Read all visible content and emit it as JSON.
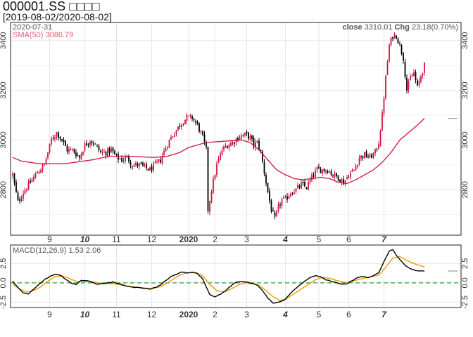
{
  "header": {
    "title": "000001.SS □□□□",
    "date_range": "[2019-08-02/2020-08-02]"
  },
  "colors": {
    "up": "#d1133f",
    "down": "#000000",
    "sma": "#d1133f",
    "macd_line": "#000000",
    "signal_line": "#e69f00",
    "zero_line": "#2ca02c",
    "grid": "#e6e6e6",
    "sma_legend": "#e0607a"
  },
  "chart_data": [
    {
      "type": "candlestick",
      "title": "",
      "info_date": "2020-07-31",
      "info_close_label": "close",
      "info_close_value": "3310.01",
      "info_chg_label": "Chg",
      "info_chg_value": "23.18(0.70%)",
      "sma_legend": "SMA(50) 3086.79",
      "ylim": [
        2620,
        3470
      ],
      "y_ticks": [
        2800,
        3000,
        3200,
        3400
      ],
      "grid": true,
      "x_range": [
        0,
        252
      ],
      "x_ticks": [
        {
          "label": "9",
          "x": 21,
          "bold": false
        },
        {
          "label": "10",
          "x": 41,
          "bold": true
        },
        {
          "label": "11",
          "x": 59,
          "bold": false
        },
        {
          "label": "12",
          "x": 79,
          "bold": false
        },
        {
          "label": "2020",
          "x": 100,
          "bold": true
        },
        {
          "label": "2",
          "x": 115,
          "bold": false
        },
        {
          "label": "3",
          "x": 133,
          "bold": false
        },
        {
          "label": "4",
          "x": 155,
          "bold": true
        },
        {
          "label": "5",
          "x": 174,
          "bold": false
        },
        {
          "label": "6",
          "x": 191,
          "bold": false
        },
        {
          "label": "7",
          "x": 211,
          "bold": true
        }
      ],
      "anchors": [
        [
          0,
          2860
        ],
        [
          3,
          2750
        ],
        [
          6,
          2790
        ],
        [
          10,
          2830
        ],
        [
          14,
          2870
        ],
        [
          18,
          2900
        ],
        [
          22,
          3000
        ],
        [
          25,
          3030
        ],
        [
          28,
          3000
        ],
        [
          31,
          2960
        ],
        [
          34,
          2960
        ],
        [
          38,
          2930
        ],
        [
          41,
          2980
        ],
        [
          44,
          3000
        ],
        [
          47,
          2980
        ],
        [
          50,
          2950
        ],
        [
          53,
          2950
        ],
        [
          56,
          2960
        ],
        [
          59,
          2930
        ],
        [
          62,
          2920
        ],
        [
          65,
          2930
        ],
        [
          68,
          2900
        ],
        [
          72,
          2900
        ],
        [
          75,
          2890
        ],
        [
          78,
          2880
        ],
        [
          81,
          2900
        ],
        [
          84,
          2920
        ],
        [
          87,
          2970
        ],
        [
          90,
          3010
        ],
        [
          93,
          3040
        ],
        [
          96,
          3070
        ],
        [
          99,
          3090
        ],
        [
          102,
          3090
        ],
        [
          105,
          3060
        ],
        [
          108,
          3010
        ],
        [
          110,
          2960
        ],
        [
          111,
          2720
        ],
        [
          113,
          2800
        ],
        [
          116,
          2900
        ],
        [
          119,
          2960
        ],
        [
          122,
          2980
        ],
        [
          125,
          2990
        ],
        [
          128,
          3010
        ],
        [
          131,
          3020
        ],
        [
          133,
          3020
        ],
        [
          135,
          3010
        ],
        [
          137,
          2980
        ],
        [
          139,
          2990
        ],
        [
          141,
          2950
        ],
        [
          143,
          2870
        ],
        [
          145,
          2790
        ],
        [
          147,
          2720
        ],
        [
          149,
          2680
        ],
        [
          151,
          2730
        ],
        [
          153,
          2760
        ],
        [
          155,
          2760
        ],
        [
          158,
          2790
        ],
        [
          161,
          2800
        ],
        [
          164,
          2820
        ],
        [
          167,
          2810
        ],
        [
          170,
          2850
        ],
        [
          173,
          2880
        ],
        [
          176,
          2880
        ],
        [
          179,
          2880
        ],
        [
          182,
          2860
        ],
        [
          185,
          2850
        ],
        [
          188,
          2830
        ],
        [
          191,
          2860
        ],
        [
          194,
          2880
        ],
        [
          197,
          2930
        ],
        [
          200,
          2940
        ],
        [
          203,
          2930
        ],
        [
          206,
          2950
        ],
        [
          208,
          2990
        ],
        [
          210,
          3100
        ],
        [
          212,
          3250
        ],
        [
          214,
          3380
        ],
        [
          216,
          3420
        ],
        [
          218,
          3420
        ],
        [
          220,
          3380
        ],
        [
          222,
          3330
        ],
        [
          224,
          3200
        ],
        [
          226,
          3250
        ],
        [
          228,
          3270
        ],
        [
          230,
          3210
        ],
        [
          232,
          3260
        ],
        [
          234,
          3300
        ]
      ],
      "sma_anchors": [
        [
          0,
          2930
        ],
        [
          5,
          2915
        ],
        [
          15,
          2905
        ],
        [
          30,
          2905
        ],
        [
          45,
          2920
        ],
        [
          55,
          2935
        ],
        [
          65,
          2935
        ],
        [
          80,
          2930
        ],
        [
          88,
          2935
        ],
        [
          95,
          2950
        ],
        [
          100,
          2970
        ],
        [
          110,
          2990
        ],
        [
          120,
          2995
        ],
        [
          130,
          3000
        ],
        [
          135,
          2990
        ],
        [
          140,
          2960
        ],
        [
          145,
          2920
        ],
        [
          150,
          2880
        ],
        [
          155,
          2860
        ],
        [
          160,
          2845
        ],
        [
          165,
          2840
        ],
        [
          170,
          2845
        ],
        [
          175,
          2850
        ],
        [
          180,
          2845
        ],
        [
          185,
          2830
        ],
        [
          190,
          2825
        ],
        [
          195,
          2840
        ],
        [
          200,
          2860
        ],
        [
          205,
          2880
        ],
        [
          210,
          2910
        ],
        [
          215,
          2950
        ],
        [
          220,
          3000
        ],
        [
          225,
          3030
        ],
        [
          230,
          3060
        ],
        [
          234,
          3087
        ]
      ]
    },
    {
      "type": "line",
      "title": "",
      "legend": "MACD(12,26,9) 1.53 2.06",
      "ylim": [
        -3.1,
        4.8
      ],
      "y_ticks": [
        -2.5,
        0.0,
        2.5
      ],
      "y_tick_labels": [
        "-2.5",
        "0.0",
        "2.5"
      ],
      "zero_line": true,
      "macd_anchors": [
        [
          0,
          0.2
        ],
        [
          3,
          -0.6
        ],
        [
          6,
          -1.3
        ],
        [
          9,
          -1.4
        ],
        [
          12,
          -0.8
        ],
        [
          15,
          -0.2
        ],
        [
          18,
          0.4
        ],
        [
          21,
          0.8
        ],
        [
          24,
          1.1
        ],
        [
          27,
          1.0
        ],
        [
          30,
          0.5
        ],
        [
          33,
          0.0
        ],
        [
          36,
          -0.2
        ],
        [
          39,
          0.3
        ],
        [
          42,
          0.3
        ],
        [
          45,
          0.1
        ],
        [
          48,
          -0.2
        ],
        [
          51,
          -0.1
        ],
        [
          54,
          0.0
        ],
        [
          57,
          0.1
        ],
        [
          60,
          -0.1
        ],
        [
          63,
          -0.3
        ],
        [
          66,
          -0.5
        ],
        [
          69,
          -0.6
        ],
        [
          72,
          -0.6
        ],
        [
          75,
          -0.7
        ],
        [
          78,
          -0.8
        ],
        [
          81,
          -0.6
        ],
        [
          84,
          -0.3
        ],
        [
          87,
          0.3
        ],
        [
          90,
          0.8
        ],
        [
          93,
          1.1
        ],
        [
          96,
          1.4
        ],
        [
          99,
          1.3
        ],
        [
          102,
          1.4
        ],
        [
          105,
          1.2
        ],
        [
          108,
          0.5
        ],
        [
          110,
          -0.5
        ],
        [
          112,
          -1.5
        ],
        [
          115,
          -1.8
        ],
        [
          118,
          -1.5
        ],
        [
          121,
          -1.0
        ],
        [
          124,
          -0.4
        ],
        [
          127,
          0.1
        ],
        [
          130,
          0.2
        ],
        [
          133,
          0.1
        ],
        [
          136,
          -0.1
        ],
        [
          139,
          -0.3
        ],
        [
          142,
          -1.0
        ],
        [
          145,
          -2.0
        ],
        [
          148,
          -2.6
        ],
        [
          151,
          -2.5
        ],
        [
          154,
          -2.3
        ],
        [
          157,
          -1.6
        ],
        [
          160,
          -0.9
        ],
        [
          163,
          -0.3
        ],
        [
          166,
          0.2
        ],
        [
          169,
          0.7
        ],
        [
          172,
          0.9
        ],
        [
          175,
          0.8
        ],
        [
          178,
          0.4
        ],
        [
          181,
          0.2
        ],
        [
          184,
          0.0
        ],
        [
          187,
          -0.2
        ],
        [
          190,
          -0.1
        ],
        [
          193,
          0.3
        ],
        [
          196,
          0.7
        ],
        [
          199,
          0.8
        ],
        [
          202,
          0.7
        ],
        [
          205,
          0.9
        ],
        [
          208,
          1.3
        ],
        [
          211,
          2.8
        ],
        [
          214,
          4.1
        ],
        [
          216,
          4.3
        ],
        [
          218,
          3.6
        ],
        [
          220,
          3.0
        ],
        [
          223,
          2.3
        ],
        [
          226,
          1.8
        ],
        [
          229,
          1.6
        ],
        [
          232,
          1.55
        ],
        [
          234,
          1.53
        ]
      ],
      "signal_anchors": [
        [
          0,
          -0.2
        ],
        [
          4,
          -0.8
        ],
        [
          8,
          -1.2
        ],
        [
          12,
          -1.0
        ],
        [
          16,
          -0.5
        ],
        [
          20,
          0.2
        ],
        [
          24,
          0.8
        ],
        [
          28,
          0.9
        ],
        [
          32,
          0.6
        ],
        [
          36,
          0.2
        ],
        [
          40,
          0.2
        ],
        [
          44,
          0.2
        ],
        [
          48,
          0.0
        ],
        [
          52,
          -0.1
        ],
        [
          56,
          -0.1
        ],
        [
          60,
          -0.2
        ],
        [
          64,
          -0.4
        ],
        [
          68,
          -0.5
        ],
        [
          72,
          -0.6
        ],
        [
          76,
          -0.7
        ],
        [
          80,
          -0.7
        ],
        [
          84,
          -0.5
        ],
        [
          88,
          0.0
        ],
        [
          92,
          0.6
        ],
        [
          96,
          1.1
        ],
        [
          100,
          1.3
        ],
        [
          104,
          1.3
        ],
        [
          108,
          0.9
        ],
        [
          112,
          -0.2
        ],
        [
          116,
          -1.0
        ],
        [
          120,
          -1.2
        ],
        [
          124,
          -0.8
        ],
        [
          128,
          -0.3
        ],
        [
          132,
          0.0
        ],
        [
          136,
          -0.1
        ],
        [
          140,
          -0.3
        ],
        [
          144,
          -1.0
        ],
        [
          148,
          -1.8
        ],
        [
          152,
          -2.3
        ],
        [
          156,
          -2.0
        ],
        [
          160,
          -1.4
        ],
        [
          164,
          -0.8
        ],
        [
          168,
          -0.2
        ],
        [
          172,
          0.4
        ],
        [
          176,
          0.7
        ],
        [
          180,
          0.6
        ],
        [
          184,
          0.3
        ],
        [
          188,
          0.1
        ],
        [
          192,
          0.1
        ],
        [
          196,
          0.4
        ],
        [
          200,
          0.6
        ],
        [
          204,
          0.8
        ],
        [
          208,
          1.0
        ],
        [
          212,
          2.0
        ],
        [
          216,
          3.2
        ],
        [
          220,
          3.4
        ],
        [
          224,
          2.9
        ],
        [
          228,
          2.5
        ],
        [
          232,
          2.2
        ],
        [
          234,
          2.06
        ]
      ]
    }
  ]
}
